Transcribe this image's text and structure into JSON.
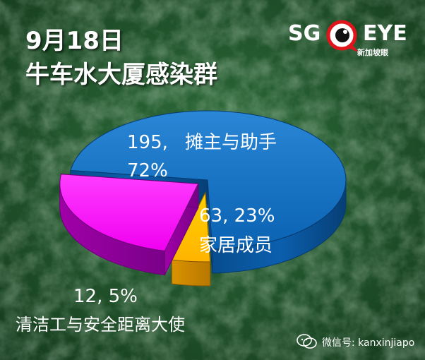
{
  "header": {
    "date": "9月18日",
    "title": "牛车水大厦感染群"
  },
  "logo": {
    "left_text": "SG",
    "right_text": "EYE",
    "sub_text": "新加坡眼"
  },
  "watermark": {
    "text": "微信号: kanxinjiapo"
  },
  "colors": {
    "vendors": "#0b6fc4",
    "family": "#ff1aff",
    "cleaners": "#ffc000"
  },
  "chart_data": {
    "type": "pie",
    "slices": [
      {
        "name": "摊主与助手",
        "value": 195,
        "percent": "72%",
        "value_label": "195,",
        "color": "#0b6fc4"
      },
      {
        "name": "家居成员",
        "value": 63,
        "percent": "23%",
        "value_label": "63, 23%",
        "color": "#ff1aff"
      },
      {
        "name": "清洁工与安全距离大使",
        "value": 12,
        "percent": "5%",
        "value_label": "12, 5%",
        "color": "#ffc000"
      }
    ]
  }
}
